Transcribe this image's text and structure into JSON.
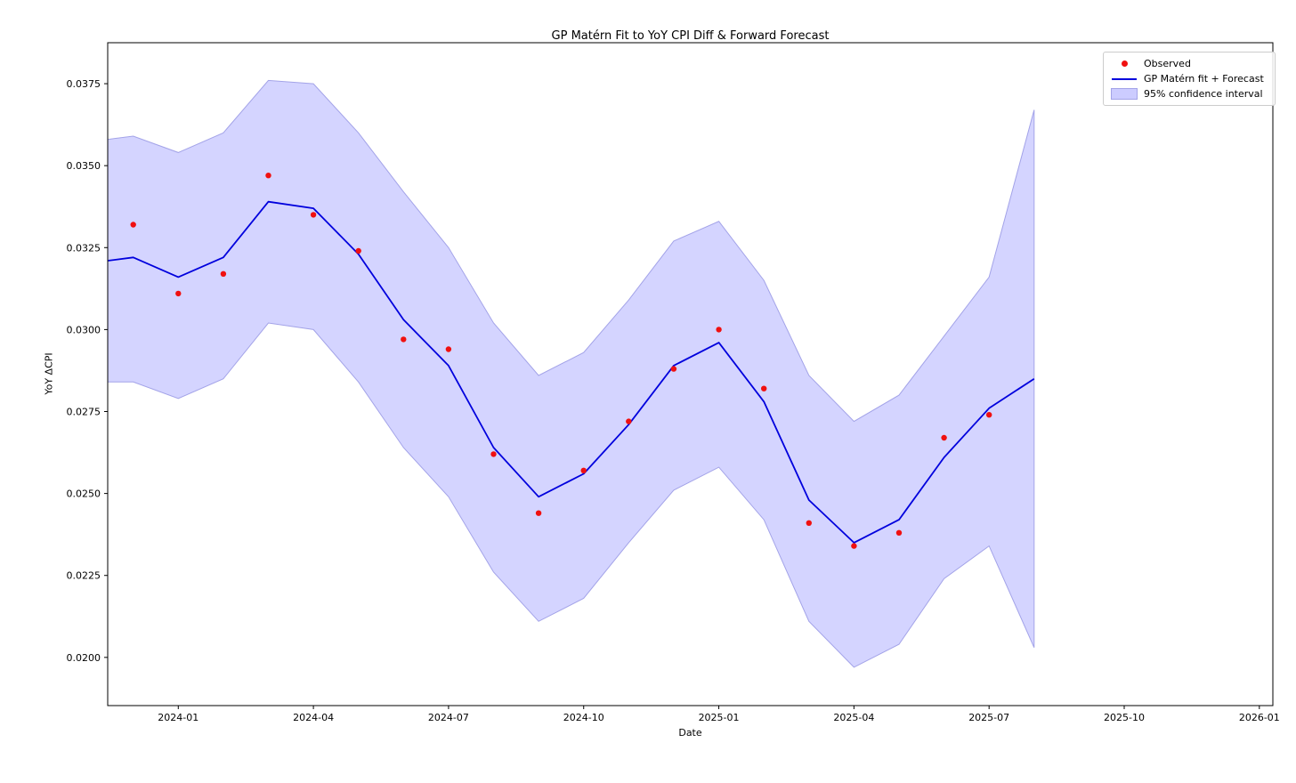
{
  "chart_data": {
    "type": "line",
    "title": "GP Matérn Fit to YoY CPI Diff & Forward Forecast",
    "xlabel": "Date",
    "ylabel": "YoY ΔCPI",
    "x_tick_labels": [
      "2024-01",
      "2024-04",
      "2024-07",
      "2024-10",
      "2025-01",
      "2025-04",
      "2025-07",
      "2025-10",
      "2026-01"
    ],
    "y_ticks": [
      0.02,
      0.0225,
      0.025,
      0.0275,
      0.03,
      0.0325,
      0.035,
      0.0375
    ],
    "y_tick_labels": [
      "0.0200",
      "0.0225",
      "0.0250",
      "0.0275",
      "0.0300",
      "0.0325",
      "0.0350",
      "0.0375"
    ],
    "xlim": [
      "2023-11-14",
      "2026-01-10"
    ],
    "ylim": [
      0.01853,
      0.03875
    ],
    "grid": false,
    "legend": {
      "position": "upper right",
      "entries": [
        {
          "label": "Observed",
          "marker": "dot",
          "color": "#f01010"
        },
        {
          "label": "GP Matérn fit + Forecast",
          "marker": "line",
          "color": "#0000dd"
        },
        {
          "label": "95% confidence interval",
          "marker": "patch",
          "color": "#ccccff"
        }
      ]
    },
    "colors": {
      "observed": "#f01010",
      "fit_line": "#0000dd",
      "band_fill": "#ccccff",
      "band_edge": "#a3a3e8",
      "axis": "#000000"
    },
    "series": {
      "observed": {
        "name": "Observed",
        "dates": [
          "2023-12-01",
          "2024-01-01",
          "2024-02-01",
          "2024-03-01",
          "2024-04-01",
          "2024-05-01",
          "2024-06-01",
          "2024-07-01",
          "2024-08-01",
          "2024-09-01",
          "2024-10-01",
          "2024-11-01",
          "2024-12-01",
          "2025-01-01",
          "2025-02-01",
          "2025-03-01",
          "2025-04-01",
          "2025-05-01",
          "2025-06-01",
          "2025-07-01"
        ],
        "values": [
          0.0332,
          0.0311,
          0.0317,
          0.0347,
          0.0335,
          0.0324,
          0.0297,
          0.0294,
          0.0262,
          0.0244,
          0.0257,
          0.0272,
          0.0288,
          0.03,
          0.0282,
          0.0241,
          0.0234,
          0.0238,
          0.0267,
          0.0274
        ]
      },
      "fit": {
        "name": "GP Matérn fit + Forecast",
        "dates": [
          "2023-11-14",
          "2023-12-01",
          "2024-01-01",
          "2024-02-01",
          "2024-03-01",
          "2024-04-01",
          "2024-05-01",
          "2024-06-01",
          "2024-07-01",
          "2024-08-01",
          "2024-09-01",
          "2024-10-01",
          "2024-11-01",
          "2024-12-01",
          "2025-01-01",
          "2025-02-01",
          "2025-03-01",
          "2025-04-01",
          "2025-05-01",
          "2025-06-01",
          "2025-07-01",
          "2025-08-01"
        ],
        "values": [
          0.0321,
          0.0322,
          0.0316,
          0.0322,
          0.0339,
          0.0337,
          0.0323,
          0.0303,
          0.0289,
          0.0264,
          0.0249,
          0.0256,
          0.0271,
          0.0289,
          0.0296,
          0.0278,
          0.0248,
          0.0235,
          0.0242,
          0.0261,
          0.0276,
          0.0285
        ]
      },
      "confidence_interval": {
        "name": "95% confidence interval",
        "dates": [
          "2023-11-14",
          "2023-12-01",
          "2024-01-01",
          "2024-02-01",
          "2024-03-01",
          "2024-04-01",
          "2024-05-01",
          "2024-06-01",
          "2024-07-01",
          "2024-08-01",
          "2024-09-01",
          "2024-10-01",
          "2024-11-01",
          "2024-12-01",
          "2025-01-01",
          "2025-02-01",
          "2025-03-01",
          "2025-04-01",
          "2025-05-01",
          "2025-06-01",
          "2025-07-01",
          "2025-08-01"
        ],
        "upper": [
          0.0358,
          0.0359,
          0.0354,
          0.036,
          0.0376,
          0.0375,
          0.036,
          0.0342,
          0.0325,
          0.0302,
          0.0286,
          0.0293,
          0.0309,
          0.0327,
          0.0333,
          0.0315,
          0.0286,
          0.0272,
          0.028,
          0.0298,
          0.0316,
          0.0367
        ],
        "lower": [
          0.0284,
          0.0284,
          0.0279,
          0.0285,
          0.0302,
          0.03,
          0.0284,
          0.0264,
          0.0249,
          0.0226,
          0.0211,
          0.0218,
          0.0235,
          0.0251,
          0.0258,
          0.0242,
          0.0211,
          0.0197,
          0.0204,
          0.0224,
          0.0234,
          0.0203
        ]
      }
    }
  }
}
